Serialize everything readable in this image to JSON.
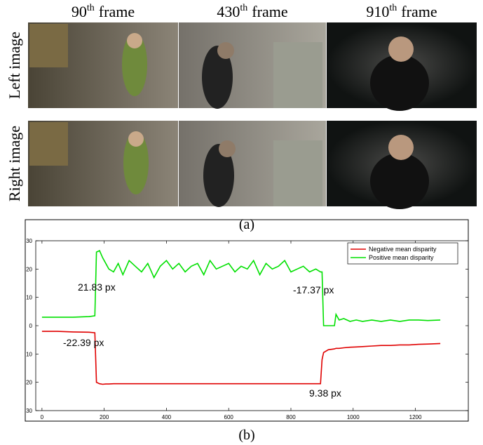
{
  "figure": {
    "column_titles": [
      {
        "base": "90",
        "sup": "th",
        "text": "frame"
      },
      {
        "base": "430",
        "sup": "th",
        "text": "frame"
      },
      {
        "base": "910",
        "sup": "th",
        "text": "frame"
      }
    ],
    "row_labels": [
      "Left image",
      "Right image"
    ],
    "captions": [
      "(a)",
      "(b)"
    ]
  },
  "chart_data": {
    "type": "line",
    "x": [
      0,
      50,
      100,
      150,
      170,
      175,
      185,
      195,
      205,
      215,
      230,
      245,
      260,
      280,
      300,
      320,
      340,
      360,
      380,
      400,
      420,
      440,
      460,
      480,
      500,
      520,
      540,
      560,
      580,
      600,
      620,
      640,
      660,
      680,
      700,
      720,
      740,
      760,
      780,
      800,
      820,
      840,
      860,
      880,
      895,
      900,
      905,
      920,
      940,
      945,
      955,
      970,
      990,
      1010,
      1030,
      1060,
      1090,
      1120,
      1150,
      1180,
      1210,
      1240,
      1280
    ],
    "series": [
      {
        "name": "Negative mean disparity",
        "color": "#e00000",
        "values": [
          -2,
          -2,
          -2.2,
          -2.3,
          -2.5,
          -20,
          -20.5,
          -20.7,
          -20.6,
          -20.6,
          -20.5,
          -20.5,
          -20.5,
          -20.5,
          -20.5,
          -20.5,
          -20.5,
          -20.5,
          -20.5,
          -20.5,
          -20.5,
          -20.5,
          -20.5,
          -20.5,
          -20.5,
          -20.5,
          -20.5,
          -20.5,
          -20.5,
          -20.5,
          -20.5,
          -20.5,
          -20.5,
          -20.5,
          -20.5,
          -20.5,
          -20.5,
          -20.5,
          -20.5,
          -20.5,
          -20.5,
          -20.5,
          -20.5,
          -20.5,
          -20.5,
          -12,
          -9.5,
          -8.5,
          -8.2,
          -8,
          -8,
          -7.8,
          -7.6,
          -7.5,
          -7.4,
          -7.2,
          -7,
          -7,
          -6.8,
          -6.8,
          -6.6,
          -6.5,
          -6.3
        ]
      },
      {
        "name": "Positive mean disparity",
        "color": "#00e000",
        "values": [
          3,
          3,
          3,
          3.2,
          3.5,
          26,
          26.5,
          24,
          22,
          20,
          19,
          22,
          18,
          23,
          21,
          19,
          22,
          17,
          21,
          23,
          20,
          22,
          19,
          21,
          22,
          18,
          23,
          20,
          21,
          22,
          19,
          21,
          20,
          23,
          18,
          22,
          20,
          21,
          23,
          19,
          20,
          21,
          19,
          20,
          19,
          19,
          0,
          0,
          0,
          4,
          2,
          2.5,
          1.5,
          2,
          1.5,
          2,
          1.5,
          2,
          1.5,
          2,
          2,
          1.8,
          2
        ]
      }
    ],
    "xlim": [
      -20,
      1370
    ],
    "xticks": [
      0,
      200,
      400,
      600,
      800,
      1000,
      1200
    ],
    "ylim": [
      -30,
      30
    ],
    "yticks": [
      {
        "value": -30,
        "label": "30"
      },
      {
        "value": -20,
        "label": "20"
      },
      {
        "value": -10,
        "label": "10"
      },
      0,
      10,
      20,
      30
    ],
    "annotations": [
      "21.83 px",
      "-22.39 px",
      "-17.37 px",
      "9.38 px"
    ],
    "legend": "upper right"
  }
}
